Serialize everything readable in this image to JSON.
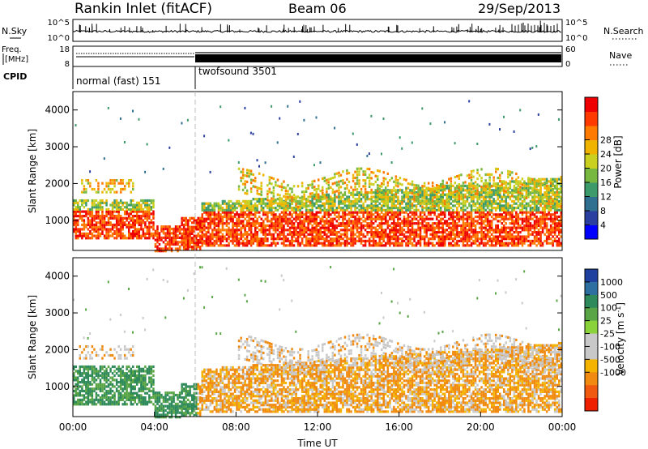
{
  "header": {
    "station": "Rankin Inlet (fitACF)",
    "beam": "Beam 06",
    "date": "29/Sep/2013"
  },
  "noise_panel": {
    "left_label": "N.Sky",
    "right_label": "N.Search",
    "left_ticks": [
      "10^5",
      "10^0"
    ],
    "right_ticks": [
      "10^5",
      "10^0"
    ]
  },
  "freq_panel": {
    "left_label_1": "Freq.",
    "left_label_2": "[MHz]",
    "right_label": "Nave",
    "left_ticks": [
      "18",
      "8"
    ],
    "right_ticks": [
      "60",
      "0"
    ]
  },
  "cpid": {
    "label": "CPID",
    "modes": [
      {
        "name": "normal (fast) 151",
        "start_hour": 0,
        "end_hour": 6.0
      },
      {
        "name": "twofsound 3501",
        "start_hour": 6.0,
        "end_hour": 24
      }
    ]
  },
  "chart_data": [
    {
      "type": "heatmap",
      "name": "power",
      "ylabel": "Slant Range [km]",
      "yticks": [
        "1000",
        "2000",
        "3000",
        "4000"
      ],
      "ylim": [
        180,
        4500
      ],
      "xlim": [
        0,
        24
      ],
      "colorbar_label": "Power [dB]",
      "colorbar_ticks": [
        "4",
        "8",
        "12",
        "16",
        "20",
        "24",
        "28"
      ],
      "colorbar_colors": [
        "#0000ff",
        "#2a3fa0",
        "#2f6f90",
        "#3d9a6a",
        "#77b841",
        "#c9d01f",
        "#f0b400",
        "#ff7a00",
        "#ff3a00",
        "#ee0000"
      ]
    },
    {
      "type": "heatmap",
      "name": "velocity",
      "ylabel": "Slant Range [km]",
      "yticks": [
        "1000",
        "2000",
        "3000",
        "4000"
      ],
      "ylim": [
        180,
        4500
      ],
      "xlim": [
        0,
        24
      ],
      "xlabel": "Time UT",
      "xticks": [
        "00:00",
        "04:00",
        "08:00",
        "12:00",
        "16:00",
        "20:00",
        "00:00"
      ],
      "colorbar_label": "Velocity [m s",
      "colorbar_label_sup": "-1",
      "colorbar_label_end": "]",
      "colorbar_ticks": [
        "1000",
        "500",
        "100",
        "25",
        "-25",
        "-100",
        "-500",
        "-1000"
      ],
      "colorbar_colors": [
        "#2040a0",
        "#2d6fa0",
        "#2e8a5a",
        "#5aa546",
        "#8ad23a",
        "#c8c8c8",
        "#c8c8c8",
        "#f4b300",
        "#f08a10",
        "#f05a10",
        "#ee2000"
      ]
    }
  ]
}
